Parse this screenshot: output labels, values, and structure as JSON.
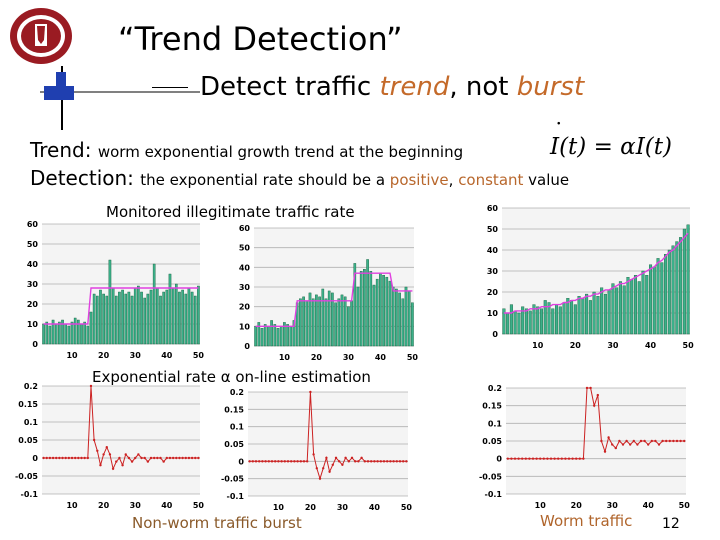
{
  "slide": {
    "title": "“Trend Detection”",
    "subtitle_prefix": "Detect traffic ",
    "subtitle_trend": "trend",
    "subtitle_mid": ", not ",
    "subtitle_burst": "burst",
    "line1_label": "Trend: ",
    "line1_text": "worm exponential growth trend at the beginning",
    "line2_label": "Detection: ",
    "line2_text_a": "the exponential rate should be a ",
    "line2_positive": "positive",
    "line2_comma": ", ",
    "line2_constant": "constant",
    "line2_text_b": " value",
    "formula": "I(t) = αI(t)",
    "caption_top": "Monitored illegitimate traffic rate",
    "caption_mid": "Exponential rate  α on-line estimation",
    "caption_left_bottom": "Non-worm traffic burst",
    "caption_right_bottom": "Worm traffic",
    "page_number": "12"
  },
  "colors": {
    "bar": "#3cb08a",
    "bar_dark": "#14603c",
    "trend_line": "#e040e0",
    "estimate_line": "#cc2222",
    "grid": "#b0b0b0",
    "accent": "#b8672c"
  },
  "chart_data": [
    {
      "type": "bar",
      "x": [
        1,
        2,
        3,
        4,
        5,
        6,
        7,
        8,
        9,
        10,
        11,
        12,
        13,
        14,
        15,
        16,
        17,
        18,
        19,
        20,
        21,
        22,
        23,
        24,
        25,
        26,
        27,
        28,
        29,
        30,
        31,
        32,
        33,
        34,
        35,
        36,
        37,
        38,
        39,
        40,
        41,
        42,
        43,
        44,
        45,
        46,
        47,
        48,
        49,
        50
      ],
      "values": [
        10,
        11,
        9,
        12,
        10,
        11,
        12,
        10,
        9,
        11,
        13,
        12,
        10,
        11,
        9,
        16,
        25,
        24,
        27,
        25,
        24,
        42,
        28,
        24,
        26,
        27,
        25,
        26,
        24,
        28,
        29,
        26,
        23,
        25,
        27,
        40,
        28,
        24,
        26,
        27,
        35,
        28,
        30,
        26,
        27,
        25,
        28,
        26,
        24,
        29
      ],
      "trend": [
        10,
        10,
        10,
        10,
        10,
        10,
        10,
        10,
        10,
        10,
        10,
        10,
        10,
        10,
        10,
        28,
        28,
        28,
        28,
        28,
        28,
        28,
        28,
        28,
        28,
        28,
        28,
        28,
        28,
        28,
        28,
        28,
        28,
        28,
        28,
        28,
        28,
        28,
        28,
        28,
        28,
        28,
        28,
        28,
        28,
        28,
        28,
        28,
        28,
        28
      ],
      "xticks": [
        10,
        20,
        30,
        40,
        50
      ],
      "yticks": [
        0,
        10,
        20,
        30,
        40,
        50,
        60
      ],
      "ylim": [
        0,
        60
      ],
      "grid": true
    },
    {
      "type": "bar",
      "x": [
        1,
        2,
        3,
        4,
        5,
        6,
        7,
        8,
        9,
        10,
        11,
        12,
        13,
        14,
        15,
        16,
        17,
        18,
        19,
        20,
        21,
        22,
        23,
        24,
        25,
        26,
        27,
        28,
        29,
        30,
        31,
        32,
        33,
        34,
        35,
        36,
        37,
        38,
        39,
        40,
        41,
        42,
        43,
        44,
        45,
        46,
        47,
        48,
        49,
        50
      ],
      "values": [
        10,
        12,
        9,
        11,
        10,
        13,
        11,
        9,
        10,
        12,
        11,
        10,
        13,
        22,
        24,
        25,
        23,
        27,
        24,
        26,
        25,
        29,
        24,
        28,
        27,
        22,
        24,
        26,
        25,
        20,
        23,
        42,
        30,
        38,
        39,
        44,
        38,
        31,
        34,
        37,
        36,
        35,
        33,
        30,
        29,
        27,
        24,
        30,
        28,
        22
      ],
      "trend": [
        10,
        10,
        10,
        10,
        10,
        10,
        10,
        10,
        10,
        10,
        10,
        10,
        10,
        23,
        23,
        23,
        23,
        23,
        23,
        23,
        23,
        23,
        23,
        23,
        23,
        23,
        23,
        23,
        23,
        23,
        23,
        37,
        37,
        37,
        37,
        37,
        37,
        37,
        37,
        37,
        37,
        37,
        37,
        28,
        28,
        28,
        28,
        28,
        28,
        28
      ],
      "xticks": [
        10,
        20,
        30,
        40,
        50
      ],
      "yticks": [
        0,
        10,
        20,
        30,
        40,
        50,
        60
      ],
      "ylim": [
        0,
        60
      ],
      "grid": true
    },
    {
      "type": "bar",
      "x": [
        1,
        2,
        3,
        4,
        5,
        6,
        7,
        8,
        9,
        10,
        11,
        12,
        13,
        14,
        15,
        16,
        17,
        18,
        19,
        20,
        21,
        22,
        23,
        24,
        25,
        26,
        27,
        28,
        29,
        30,
        31,
        32,
        33,
        34,
        35,
        36,
        37,
        38,
        39,
        40,
        41,
        42,
        43,
        44,
        45,
        46,
        47,
        48,
        49,
        50
      ],
      "values": [
        12,
        10,
        14,
        11,
        10,
        13,
        12,
        11,
        14,
        13,
        12,
        16,
        15,
        12,
        14,
        13,
        15,
        17,
        16,
        14,
        18,
        17,
        19,
        16,
        20,
        18,
        22,
        19,
        21,
        24,
        22,
        25,
        23,
        27,
        26,
        28,
        25,
        30,
        28,
        33,
        32,
        36,
        34,
        38,
        40,
        42,
        44,
        46,
        50,
        52
      ],
      "trend": [
        10,
        10,
        10,
        11,
        11,
        11,
        11,
        12,
        12,
        12,
        13,
        13,
        13,
        14,
        14,
        14,
        15,
        15,
        16,
        16,
        17,
        17,
        18,
        18,
        19,
        19,
        20,
        21,
        21,
        22,
        23,
        24,
        24,
        25,
        26,
        27,
        28,
        29,
        30,
        31,
        32,
        34,
        35,
        37,
        39,
        40,
        42,
        44,
        46,
        48
      ],
      "xticks": [
        10,
        20,
        30,
        40,
        50
      ],
      "yticks": [
        0,
        10,
        20,
        30,
        40,
        50,
        60
      ],
      "ylim": [
        0,
        60
      ],
      "grid": true
    },
    {
      "type": "line",
      "x": [
        1,
        2,
        3,
        4,
        5,
        6,
        7,
        8,
        9,
        10,
        11,
        12,
        13,
        14,
        15,
        16,
        17,
        18,
        19,
        20,
        21,
        22,
        23,
        24,
        25,
        26,
        27,
        28,
        29,
        30,
        31,
        32,
        33,
        34,
        35,
        36,
        37,
        38,
        39,
        40,
        41,
        42,
        43,
        44,
        45,
        46,
        47,
        48,
        49,
        50
      ],
      "values": [
        0,
        0,
        0,
        0,
        0,
        0,
        0,
        0,
        0,
        0,
        0,
        0,
        0,
        0,
        0,
        0.3,
        0.05,
        0.02,
        -0.02,
        0.01,
        0.03,
        0.01,
        -0.03,
        -0.01,
        0.0,
        -0.02,
        0.01,
        0.0,
        -0.01,
        0.0,
        0.01,
        0.0,
        0.0,
        -0.01,
        0.0,
        0.0,
        0.0,
        0.0,
        -0.01,
        0.0,
        0.0,
        0.0,
        0.0,
        0.0,
        0.0,
        0.0,
        0.0,
        0.0,
        0.0,
        0.0
      ],
      "xticks": [
        10,
        20,
        30,
        40,
        50
      ],
      "yticks": [
        -0.1,
        -0.05,
        0,
        0.05,
        0.1,
        0.15,
        0.2
      ],
      "ylim": [
        -0.1,
        0.2
      ],
      "grid": true
    },
    {
      "type": "line",
      "x": [
        1,
        2,
        3,
        4,
        5,
        6,
        7,
        8,
        9,
        10,
        11,
        12,
        13,
        14,
        15,
        16,
        17,
        18,
        19,
        20,
        21,
        22,
        23,
        24,
        25,
        26,
        27,
        28,
        29,
        30,
        31,
        32,
        33,
        34,
        35,
        36,
        37,
        38,
        39,
        40,
        41,
        42,
        43,
        44,
        45,
        46,
        47,
        48,
        49,
        50
      ],
      "values": [
        0,
        0,
        0,
        0,
        0,
        0,
        0,
        0,
        0,
        0,
        0,
        0,
        0,
        0,
        0,
        0,
        0,
        0,
        0,
        0.3,
        0.02,
        -0.02,
        -0.05,
        -0.02,
        0.01,
        -0.03,
        -0.01,
        0.01,
        0.0,
        -0.01,
        0.01,
        0.0,
        0.01,
        0.0,
        0.0,
        0.01,
        0.0,
        0.0,
        0.0,
        0.0,
        0.0,
        0.0,
        0.0,
        0.0,
        0.0,
        0.0,
        0.0,
        0.0,
        0.0,
        0.0
      ],
      "xticks": [
        10,
        20,
        30,
        40,
        50
      ],
      "yticks": [
        -0.1,
        -0.05,
        0,
        0.05,
        0.1,
        0.15,
        0.2
      ],
      "ylim": [
        -0.1,
        0.2
      ],
      "grid": true
    },
    {
      "type": "line",
      "x": [
        1,
        2,
        3,
        4,
        5,
        6,
        7,
        8,
        9,
        10,
        11,
        12,
        13,
        14,
        15,
        16,
        17,
        18,
        19,
        20,
        21,
        22,
        23,
        24,
        25,
        26,
        27,
        28,
        29,
        30,
        31,
        32,
        33,
        34,
        35,
        36,
        37,
        38,
        39,
        40,
        41,
        42,
        43,
        44,
        45,
        46,
        47,
        48,
        49,
        50
      ],
      "values": [
        0,
        0,
        0,
        0,
        0,
        0,
        0,
        0,
        0,
        0,
        0,
        0,
        0,
        0,
        0,
        0,
        0,
        0,
        0,
        0,
        0,
        0,
        0.3,
        0.2,
        0.15,
        0.18,
        0.05,
        0.02,
        0.06,
        0.04,
        0.03,
        0.05,
        0.04,
        0.05,
        0.04,
        0.05,
        0.04,
        0.05,
        0.05,
        0.04,
        0.05,
        0.05,
        0.04,
        0.05,
        0.05,
        0.05,
        0.05,
        0.05,
        0.05,
        0.05
      ],
      "xticks": [
        10,
        20,
        30,
        40,
        50
      ],
      "yticks": [
        -0.1,
        -0.05,
        0,
        0.05,
        0.1,
        0.15,
        0.2
      ],
      "ylim": [
        -0.1,
        0.2
      ],
      "grid": true
    }
  ]
}
